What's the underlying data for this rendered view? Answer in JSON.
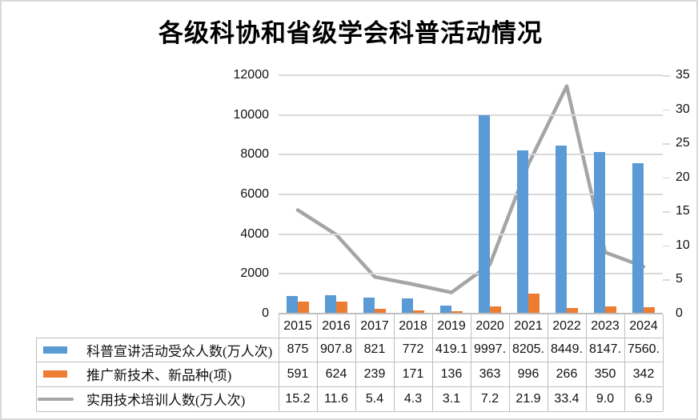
{
  "title": "各级科协和省级学会科普活动情况",
  "colors": {
    "bar_blue": "#5B9BD5",
    "bar_orange": "#ED7D31",
    "line_gray": "#A5A5A5",
    "gridline": "#D9D9D9",
    "table_border": "#BFBFBF"
  },
  "chart_data": {
    "type": "bar",
    "subtype": "bar+line-combo-dual-axis",
    "title": "各级科协和省级学会科普活动情况",
    "categories": [
      "2015",
      "2016",
      "2017",
      "2018",
      "2019",
      "2020",
      "2021",
      "2022",
      "2023",
      "2024"
    ],
    "series": [
      {
        "name": "科普宣讲活动受众人数(万人次)",
        "type": "bar",
        "axis": "left",
        "color": "#5B9BD5",
        "values": [
          875,
          907.8,
          821,
          772,
          419.1,
          9997,
          8205,
          8449,
          8147,
          7560
        ],
        "display": [
          "875",
          "907.8",
          "821",
          "772",
          "419.1",
          "9997.",
          "8205.",
          "8449.",
          "8147.",
          "7560."
        ]
      },
      {
        "name": "推广新技术、新品种(项)",
        "type": "bar",
        "axis": "left",
        "color": "#ED7D31",
        "values": [
          591,
          624,
          239,
          171,
          136,
          363,
          996,
          266,
          350,
          342
        ],
        "display": [
          "591",
          "624",
          "239",
          "171",
          "136",
          "363",
          "996",
          "266",
          "350",
          "342"
        ]
      },
      {
        "name": "实用技术培训人数(万人次)",
        "type": "line",
        "axis": "right",
        "color": "#A5A5A5",
        "values": [
          15.2,
          11.6,
          5.4,
          4.3,
          3.1,
          7.2,
          21.9,
          33.4,
          9.0,
          6.9
        ],
        "display": [
          "15.2",
          "11.6",
          "5.4",
          "4.3",
          "3.1",
          "7.2",
          "21.9",
          "33.4",
          "9.0",
          "6.9"
        ]
      }
    ],
    "left_axis": {
      "min": 0,
      "max": 12000,
      "step": 2000,
      "ticks": [
        "0",
        "2000",
        "4000",
        "6000",
        "8000",
        "10000",
        "12000"
      ]
    },
    "right_axis": {
      "min": 0,
      "max": 35,
      "step": 5,
      "ticks": [
        "0",
        "5",
        "10",
        "15",
        "20",
        "25",
        "30",
        "35"
      ]
    },
    "grid": true,
    "legend_position": "data-table-left"
  }
}
